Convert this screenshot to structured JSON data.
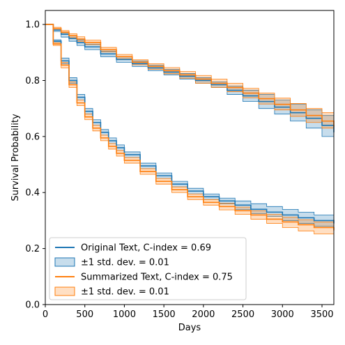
{
  "chart_data": {
    "type": "line",
    "xlabel": "Days",
    "ylabel": "Survival Probability",
    "xlim": [
      0,
      3650
    ],
    "ylim": [
      0.0,
      1.05
    ],
    "xticks": [
      0,
      500,
      1000,
      1500,
      2000,
      2500,
      3000,
      3500
    ],
    "yticks": [
      0.0,
      0.2,
      0.4,
      0.6,
      0.8,
      1.0
    ],
    "xtick_labels": [
      "0",
      "500",
      "1000",
      "1500",
      "2000",
      "2500",
      "3000",
      "3500"
    ],
    "ytick_labels": [
      "0.0",
      "0.2",
      "0.4",
      "0.6",
      "0.8",
      "1.0"
    ],
    "grid": false,
    "legend_position": "lower-left",
    "legend": [
      {
        "kind": "line",
        "label": "Original Text, C-index = 0.69",
        "color": "#1f77b4"
      },
      {
        "kind": "band",
        "label": "±1 std. dev. = 0.01",
        "color": "#1f77b4"
      },
      {
        "kind": "line",
        "label": "Summarized Text, C-index = 0.75",
        "color": "#ff7f0e"
      },
      {
        "kind": "band",
        "label": "±1 std. dev. = 0.01",
        "color": "#ff7f0e"
      }
    ],
    "series": [
      {
        "group": "Original Text",
        "curve": "upper",
        "color": "#1f77b4",
        "x": [
          0,
          100,
          200,
          300,
          400,
          500,
          700,
          900,
          1100,
          1300,
          1500,
          1700,
          1900,
          2100,
          2300,
          2500,
          2700,
          2900,
          3100,
          3300,
          3500,
          3650
        ],
        "y": [
          1.0,
          0.98,
          0.965,
          0.95,
          0.935,
          0.92,
          0.895,
          0.875,
          0.86,
          0.845,
          0.83,
          0.815,
          0.8,
          0.785,
          0.765,
          0.745,
          0.725,
          0.705,
          0.685,
          0.665,
          0.64,
          0.615
        ],
        "lower": [
          1.0,
          0.975,
          0.955,
          0.94,
          0.925,
          0.91,
          0.885,
          0.865,
          0.85,
          0.835,
          0.82,
          0.805,
          0.79,
          0.775,
          0.75,
          0.725,
          0.7,
          0.68,
          0.655,
          0.63,
          0.6,
          0.575
        ],
        "upper": [
          1.0,
          0.985,
          0.97,
          0.96,
          0.945,
          0.93,
          0.905,
          0.885,
          0.87,
          0.855,
          0.84,
          0.825,
          0.81,
          0.795,
          0.78,
          0.765,
          0.75,
          0.73,
          0.715,
          0.695,
          0.675,
          0.655
        ]
      },
      {
        "group": "Original Text",
        "curve": "lower",
        "color": "#1f77b4",
        "x": [
          0,
          100,
          200,
          300,
          400,
          500,
          600,
          700,
          800,
          900,
          1000,
          1200,
          1400,
          1600,
          1800,
          2000,
          2200,
          2400,
          2600,
          2800,
          3000,
          3200,
          3400,
          3650
        ],
        "y": [
          1.0,
          0.94,
          0.87,
          0.8,
          0.74,
          0.69,
          0.65,
          0.615,
          0.585,
          0.56,
          0.535,
          0.495,
          0.46,
          0.43,
          0.405,
          0.385,
          0.37,
          0.355,
          0.34,
          0.33,
          0.32,
          0.31,
          0.3,
          0.29
        ],
        "lower": [
          1.0,
          0.935,
          0.86,
          0.79,
          0.73,
          0.68,
          0.64,
          0.605,
          0.575,
          0.55,
          0.525,
          0.485,
          0.45,
          0.42,
          0.395,
          0.375,
          0.36,
          0.34,
          0.325,
          0.315,
          0.3,
          0.29,
          0.28,
          0.27
        ],
        "upper": [
          1.0,
          0.945,
          0.88,
          0.81,
          0.75,
          0.7,
          0.66,
          0.625,
          0.595,
          0.57,
          0.545,
          0.505,
          0.47,
          0.44,
          0.415,
          0.395,
          0.38,
          0.37,
          0.36,
          0.35,
          0.34,
          0.33,
          0.32,
          0.31
        ]
      },
      {
        "group": "Summarized Text",
        "curve": "upper",
        "color": "#ff7f0e",
        "x": [
          0,
          100,
          200,
          300,
          400,
          500,
          700,
          900,
          1100,
          1300,
          1500,
          1700,
          1900,
          2100,
          2300,
          2500,
          2700,
          2900,
          3100,
          3300,
          3500,
          3650
        ],
        "y": [
          1.0,
          0.985,
          0.972,
          0.96,
          0.948,
          0.936,
          0.91,
          0.885,
          0.865,
          0.85,
          0.835,
          0.82,
          0.805,
          0.79,
          0.775,
          0.755,
          0.735,
          0.715,
          0.695,
          0.675,
          0.655,
          0.635
        ],
        "lower": [
          1.0,
          0.98,
          0.965,
          0.953,
          0.94,
          0.928,
          0.902,
          0.877,
          0.856,
          0.84,
          0.824,
          0.808,
          0.79,
          0.775,
          0.76,
          0.738,
          0.716,
          0.695,
          0.672,
          0.65,
          0.63,
          0.605
        ],
        "upper": [
          1.0,
          0.99,
          0.978,
          0.967,
          0.956,
          0.944,
          0.918,
          0.893,
          0.874,
          0.86,
          0.846,
          0.832,
          0.818,
          0.805,
          0.79,
          0.772,
          0.755,
          0.737,
          0.718,
          0.7,
          0.685,
          0.665
        ]
      },
      {
        "group": "Summarized Text",
        "curve": "lower",
        "color": "#ff7f0e",
        "x": [
          0,
          100,
          200,
          300,
          400,
          500,
          600,
          700,
          800,
          900,
          1000,
          1200,
          1400,
          1600,
          1800,
          2000,
          2200,
          2400,
          2600,
          2800,
          3000,
          3200,
          3400,
          3650
        ],
        "y": [
          1.0,
          0.93,
          0.855,
          0.785,
          0.72,
          0.67,
          0.63,
          0.595,
          0.565,
          0.54,
          0.515,
          0.475,
          0.44,
          0.41,
          0.385,
          0.365,
          0.35,
          0.335,
          0.32,
          0.305,
          0.295,
          0.285,
          0.275,
          0.265
        ],
        "lower": [
          1.0,
          0.925,
          0.845,
          0.775,
          0.71,
          0.66,
          0.62,
          0.585,
          0.555,
          0.53,
          0.505,
          0.465,
          0.43,
          0.4,
          0.375,
          0.355,
          0.338,
          0.322,
          0.305,
          0.29,
          0.275,
          0.263,
          0.252,
          0.242
        ],
        "upper": [
          1.0,
          0.935,
          0.865,
          0.795,
          0.73,
          0.68,
          0.64,
          0.605,
          0.575,
          0.55,
          0.525,
          0.485,
          0.45,
          0.42,
          0.395,
          0.375,
          0.362,
          0.348,
          0.335,
          0.322,
          0.312,
          0.303,
          0.295,
          0.288
        ]
      }
    ]
  }
}
